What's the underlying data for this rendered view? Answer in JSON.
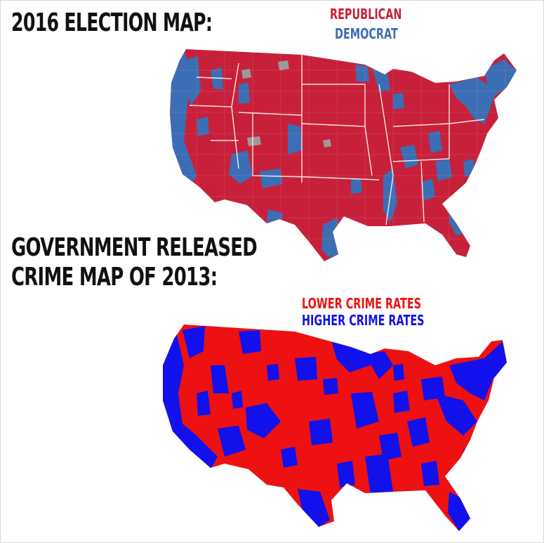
{
  "election_map": {
    "title": "2016 ELECTION MAP:",
    "legend": [
      {
        "label": "REPUBLICAN",
        "color": "#c8203a"
      },
      {
        "label": "DEMOCRAT",
        "color": "#3b6eb5"
      }
    ]
  },
  "crime_map": {
    "title_line1": "GOVERNMENT RELEASED",
    "title_line2": "CRIME MAP OF 2013:",
    "legend": [
      {
        "label": "LOWER CRIME RATES",
        "color": "#ee1111"
      },
      {
        "label": "HIGHER CRIME RATES",
        "color": "#1111ee"
      }
    ]
  }
}
